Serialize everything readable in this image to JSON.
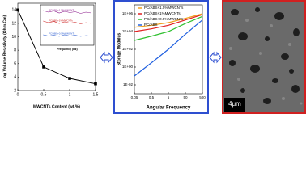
{
  "chart_data": [
    {
      "type": "line",
      "ylabel": "log Volume Resistivity (Ohm.Cm)",
      "xlabel": "MWCNTs Content (wt.%)",
      "x": [
        0,
        0.5,
        1,
        1.5
      ],
      "values": [
        14,
        5.5,
        3.8,
        3
      ],
      "color": "#000000",
      "xlim": [
        0,
        1.5
      ],
      "xticks": [
        0,
        0.5,
        1,
        1.5
      ],
      "ylim": [
        2,
        15
      ],
      "yticks": [
        2,
        4,
        6,
        8,
        10,
        12,
        14
      ]
    },
    {
      "type": "line",
      "xlabel": "Frequency (Hz)",
      "categories": [
        null,
        null,
        null,
        null,
        null,
        null,
        null,
        null,
        null,
        null
      ],
      "ylim": [
        0,
        10
      ],
      "series": [
        {
          "name": "PC/ABS+1.5%MWCNTs",
          "color": "#8b1a8b",
          "values": [
            8.6,
            8.2,
            8.5,
            8.0,
            8.4,
            8.1,
            8.3,
            7.9,
            8.2,
            8.0
          ]
        },
        {
          "name": "PC/ABS+1%MWCNTs",
          "color": "#cc2222",
          "values": [
            6.0,
            5.6,
            5.9,
            5.4,
            5.8,
            5.5,
            5.7,
            5.3,
            5.6,
            5.4
          ]
        },
        {
          "name": "PC/ABS+0.5%MWCNTs",
          "color": "#2255cc",
          "values": [
            2.6,
            2.3,
            2.5,
            2.2,
            2.6,
            2.3,
            2.5,
            2.2,
            2.4,
            2.3
          ]
        }
      ]
    },
    {
      "type": "line",
      "ylabel": "Storage Modulus",
      "xlabel": "Angular Frequency",
      "log_x": true,
      "log_y": true,
      "x": [
        0.05,
        0.5,
        5,
        50,
        500
      ],
      "xlim": [
        0.05,
        500
      ],
      "xticks": [
        0.05,
        0.5,
        5,
        50,
        500
      ],
      "ylim": [
        0.001,
        10000000
      ],
      "yticks": [
        {
          "value": 0.01,
          "label": "1E-02"
        },
        {
          "value": 1,
          "label": "1E+00"
        },
        {
          "value": 100,
          "label": "1E+02"
        },
        {
          "value": 10000,
          "label": "1E+04"
        },
        {
          "value": 1000000,
          "label": "1E+06"
        }
      ],
      "series": [
        {
          "name": "PC/ABS+1.5%MWCNTs",
          "color": "#f0a020",
          "values": [
            30000,
            50000,
            100000,
            300000,
            1000000
          ]
        },
        {
          "name": "PC/ABS+1%MWCNTs",
          "color": "#e02020",
          "values": [
            10000,
            20000,
            50000,
            200000,
            800000
          ]
        },
        {
          "name": "PC/ABS+0.5%MWCNTs",
          "color": "#30c030",
          "values": [
            1000,
            3000,
            10000,
            80000,
            500000
          ]
        },
        {
          "name": "PC/ABS",
          "color": "#2060e0",
          "values": [
            0.1,
            3,
            100,
            5000,
            200000
          ]
        }
      ]
    }
  ],
  "image": {
    "scale_label": "4μm"
  }
}
